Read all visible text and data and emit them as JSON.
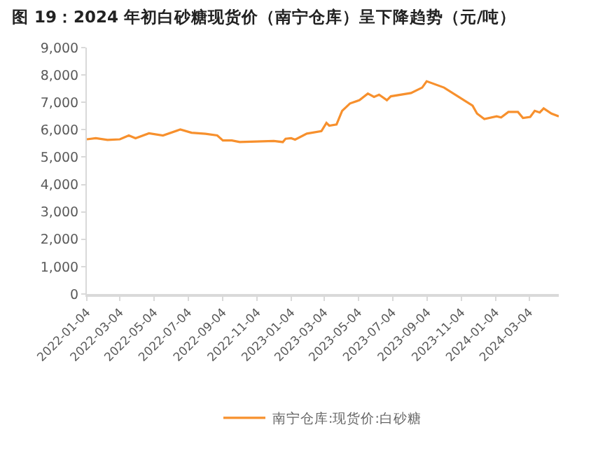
{
  "chart_data": {
    "type": "line",
    "title": "图 19：2024 年初白砂糖现货价（南宁仓库）呈下降趋势（元/吨）",
    "xlim": [
      "2022-01-04",
      "2024-04-26"
    ],
    "xticks": [
      "2022-01-04",
      "2022-03-04",
      "2022-05-04",
      "2022-07-04",
      "2022-09-04",
      "2022-11-04",
      "2023-01-04",
      "2023-03-04",
      "2023-05-04",
      "2023-07-04",
      "2023-09-04",
      "2023-11-04",
      "2024-01-04",
      "2024-03-04"
    ],
    "ylim": [
      0,
      9000
    ],
    "yticks": [
      0,
      {
        "value": 1000,
        "label": "1,000"
      },
      {
        "value": 2000,
        "label": "2,000"
      },
      {
        "value": 3000,
        "label": "3,000"
      },
      {
        "value": 4000,
        "label": "4,000"
      },
      {
        "value": 5000,
        "label": "5,000"
      },
      {
        "value": 6000,
        "label": "6,000"
      },
      {
        "value": 7000,
        "label": "7,000"
      },
      {
        "value": 8000,
        "label": "8,000"
      },
      {
        "value": 9000,
        "label": "9,000"
      }
    ],
    "grid": false,
    "legend": "bottom",
    "marker": "none",
    "line_style": "solid",
    "series": [
      {
        "name": "南宁仓库:现货价:白砂糖",
        "color": "#f7902d",
        "x": [
          "2022-01-04",
          "2022-01-20",
          "2022-02-10",
          "2022-03-04",
          "2022-03-20",
          "2022-04-01",
          "2022-04-25",
          "2022-05-20",
          "2022-06-20",
          "2022-07-10",
          "2022-08-04",
          "2022-08-25",
          "2022-09-04",
          "2022-09-20",
          "2022-10-04",
          "2022-11-04",
          "2022-12-04",
          "2022-12-20",
          "2022-12-25",
          "2023-01-04",
          "2023-01-11",
          "2023-02-01",
          "2023-02-27",
          "2023-03-08",
          "2023-03-13",
          "2023-03-26",
          "2023-04-05",
          "2023-04-19",
          "2023-05-06",
          "2023-05-21",
          "2023-06-01",
          "2023-06-10",
          "2023-06-24",
          "2023-07-01",
          "2023-08-06",
          "2023-08-26",
          "2023-09-03",
          "2023-10-04",
          "2023-11-24",
          "2023-12-02",
          "2023-12-15",
          "2024-01-06",
          "2024-01-14",
          "2024-01-27",
          "2024-02-13",
          "2024-02-22",
          "2024-03-06",
          "2024-03-14",
          "2024-03-23",
          "2024-03-30",
          "2024-04-13",
          "2024-04-26"
        ],
        "values": [
          5650,
          5690,
          5630,
          5650,
          5790,
          5690,
          5870,
          5790,
          6010,
          5890,
          5850,
          5790,
          5610,
          5610,
          5550,
          5570,
          5590,
          5550,
          5670,
          5690,
          5640,
          5860,
          5950,
          6250,
          6150,
          6190,
          6690,
          6960,
          7080,
          7320,
          7200,
          7280,
          7080,
          7220,
          7340,
          7540,
          7770,
          7540,
          6880,
          6590,
          6390,
          6490,
          6450,
          6650,
          6650,
          6430,
          6470,
          6690,
          6630,
          6780,
          6590,
          6490
        ]
      }
    ]
  }
}
